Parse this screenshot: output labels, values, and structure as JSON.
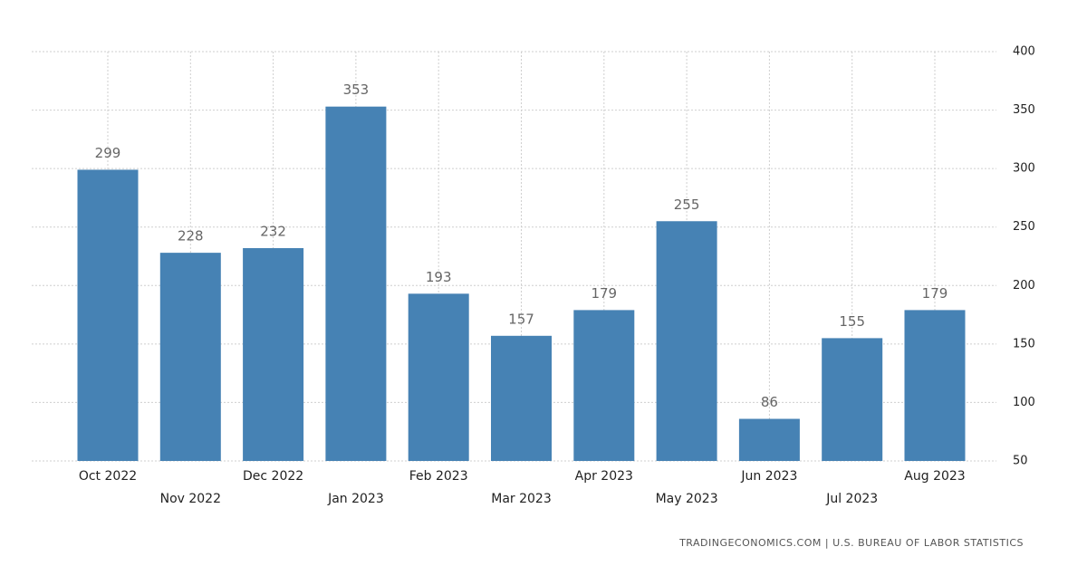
{
  "chart_data": {
    "type": "bar",
    "categories": [
      "Oct 2022",
      "Nov 2022",
      "Dec 2022",
      "Jan 2023",
      "Feb 2023",
      "Mar 2023",
      "Apr 2023",
      "May 2023",
      "Jun 2023",
      "Jul 2023",
      "Aug 2023"
    ],
    "values": [
      299,
      228,
      232,
      353,
      193,
      157,
      179,
      255,
      86,
      155,
      179
    ],
    "color": "#4682b4",
    "ylim": [
      50,
      400
    ],
    "yticks": [
      50,
      100,
      150,
      200,
      250,
      300,
      350,
      400
    ],
    "grid": true,
    "source": "TRADINGECONOMICS.COM | U.S. BUREAU OF LABOR STATISTICS"
  }
}
